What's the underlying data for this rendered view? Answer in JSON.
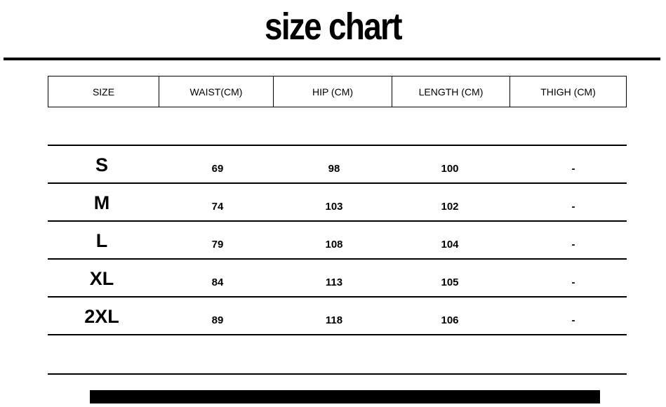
{
  "title": "size chart",
  "table": {
    "headers": [
      "SIZE",
      "WAIST(CM)",
      "HIP (CM)",
      "LENGTH (CM)",
      "THIGH (CM)"
    ],
    "rows": [
      [
        "S",
        "69",
        "98",
        "100",
        "-"
      ],
      [
        "M",
        "74",
        "103",
        "102",
        "-"
      ],
      [
        "L",
        "79",
        "108",
        "104",
        "-"
      ],
      [
        "XL",
        "84",
        "113",
        "105",
        "-"
      ],
      [
        "2XL",
        "89",
        "118",
        "106",
        "-"
      ]
    ]
  }
}
